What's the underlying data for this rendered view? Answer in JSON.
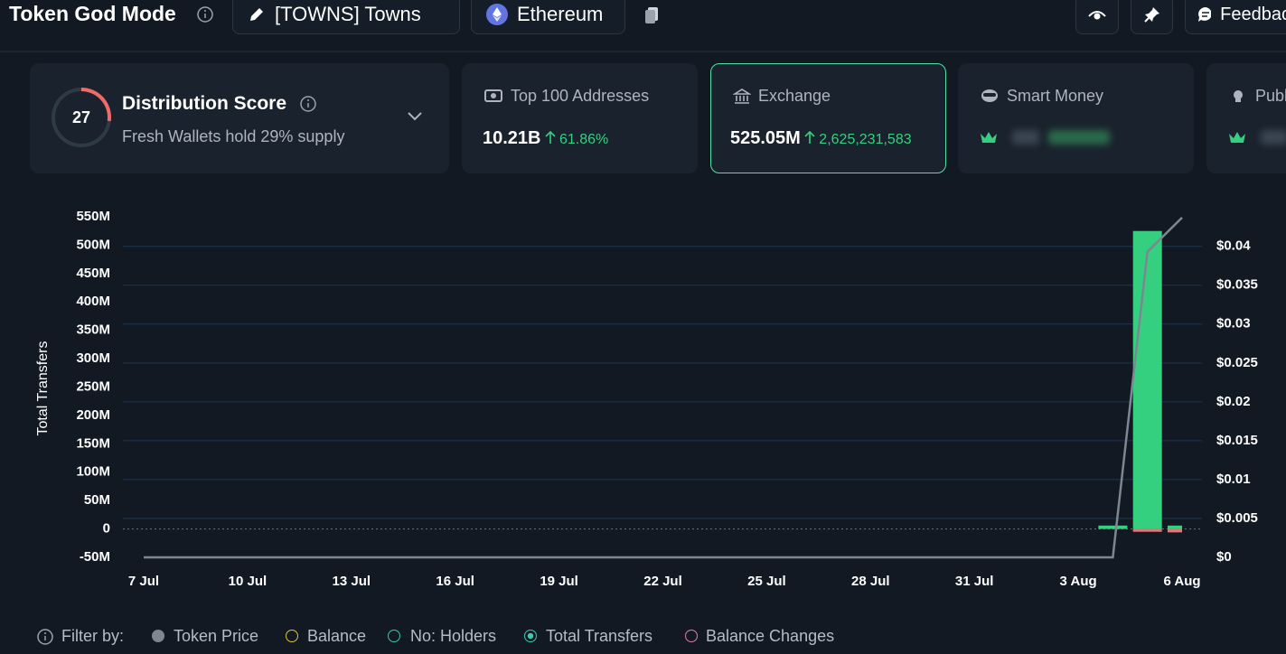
{
  "header": {
    "title": "Token God Mode",
    "token": "[TOWNS] Towns",
    "chain": "Ethereum",
    "feedback": "Feedback"
  },
  "cards": [
    {
      "score": 27,
      "title": "Distribution Score",
      "subtitle": "Fresh Wallets hold 29% supply"
    },
    {
      "title": "Top 100 Addresses",
      "value": "10.21B",
      "change": "61.86%"
    },
    {
      "title": "Exchange",
      "value": "525.05M",
      "change": "2,625,231,583"
    },
    {
      "title": "Smart Money"
    },
    {
      "title": "Public Figure"
    }
  ],
  "chart_data": {
    "type": "bar",
    "ylabel": "Total Transfers",
    "categories": [
      "7 Jul",
      null,
      null,
      "10 Jul",
      null,
      null,
      "13 Jul",
      null,
      null,
      "16 Jul",
      null,
      null,
      "19 Jul",
      null,
      null,
      "22 Jul",
      null,
      null,
      "25 Jul",
      null,
      null,
      "28 Jul",
      null,
      null,
      "31 Jul",
      null,
      null,
      "3 Aug",
      null,
      null,
      "6 Aug"
    ],
    "series": [
      {
        "color": "#34d07f",
        "values": [
          0,
          0,
          0,
          0,
          0,
          0,
          0,
          0,
          0,
          0,
          0,
          0,
          0,
          0,
          0,
          0,
          0,
          0,
          0,
          0,
          0,
          0,
          0,
          0,
          0,
          0,
          0,
          0,
          6000000,
          525000000,
          6000000
        ]
      },
      {
        "color": "#e0787a",
        "values": [
          0,
          0,
          0,
          0,
          0,
          0,
          0,
          0,
          0,
          0,
          0,
          0,
          0,
          0,
          0,
          0,
          0,
          0,
          0,
          0,
          0,
          0,
          0,
          0,
          0,
          0,
          0,
          0,
          0,
          -5000000,
          -6000000
        ]
      },
      {
        "type": "line",
        "axis": "y2",
        "color": "#7d8792",
        "values": [
          0,
          0,
          0,
          0,
          0,
          0,
          0,
          0,
          0,
          0,
          0,
          0,
          0,
          0,
          0,
          0,
          0,
          0,
          0,
          0,
          0,
          0,
          0,
          0,
          0,
          0,
          0,
          0,
          0,
          0.0393,
          0.0437
        ]
      }
    ],
    "ylim": [
      -50000000,
      550000000
    ],
    "yticks": [
      {
        "value": -50000000,
        "label": "-50M"
      },
      0,
      {
        "value": 50000000,
        "label": "50M"
      },
      {
        "value": 100000000,
        "label": "100M"
      },
      {
        "value": 150000000,
        "label": "150M"
      },
      {
        "value": 200000000,
        "label": "200M"
      },
      {
        "value": 250000000,
        "label": "250M"
      },
      {
        "value": 300000000,
        "label": "300M"
      },
      {
        "value": 350000000,
        "label": "350M"
      },
      {
        "value": 400000000,
        "label": "400M"
      },
      {
        "value": 450000000,
        "label": "450M"
      },
      {
        "value": 500000000,
        "label": "500M"
      },
      {
        "value": 550000000,
        "label": "550M"
      }
    ],
    "y2lim": [
      0,
      0.0438
    ],
    "y2ticks": [
      {
        "value": 0,
        "label": "$0"
      },
      {
        "value": 0.005,
        "label": "$0.005"
      },
      {
        "value": 0.01,
        "label": "$0.01"
      },
      {
        "value": 0.015,
        "label": "$0.015"
      },
      {
        "value": 0.02,
        "label": "$0.02"
      },
      {
        "value": 0.025,
        "label": "$0.025"
      },
      {
        "value": 0.03,
        "label": "$0.03"
      },
      {
        "value": 0.035,
        "label": "$0.035"
      },
      {
        "value": 0.04,
        "label": "$0.04"
      }
    ],
    "grid": true
  },
  "filter": {
    "label": "Filter by:",
    "options": [
      "Token Price",
      "Balance",
      "No: Holders",
      "Total Transfers",
      "Balance Changes"
    ]
  }
}
